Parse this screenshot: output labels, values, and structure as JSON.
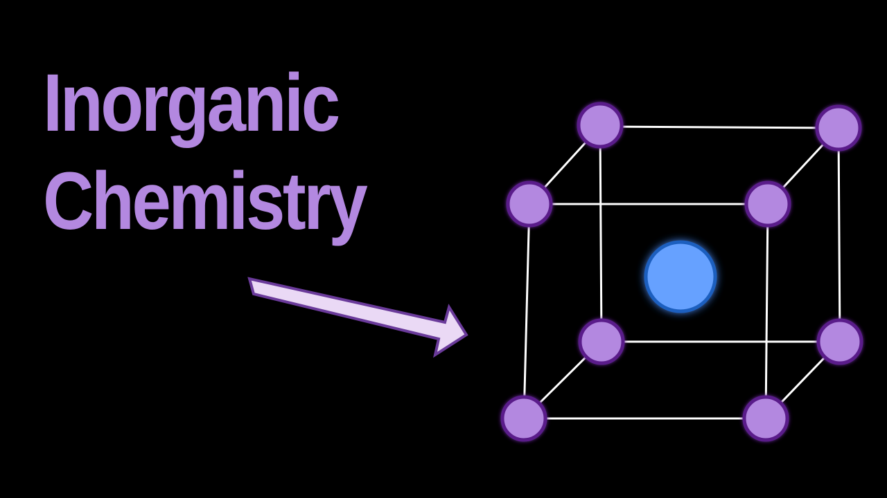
{
  "title": {
    "line1": "Inorganic",
    "line2": "Chemistry"
  },
  "colors": {
    "background": "#000000",
    "title_text": "#b388e0",
    "arrow_fill": "#ead9f5",
    "arrow_stroke": "#6a3a9a",
    "corner_atom_fill": "#b388e0",
    "corner_atom_stroke": "#5a1a8a",
    "center_atom_fill": "#66a1ff",
    "center_atom_stroke": "#1f5fbf",
    "bond_color": "#ffffff"
  },
  "icons": {
    "arrow": "arrow-right-icon",
    "lattice": "body-centered-cubic-unit-cell"
  }
}
